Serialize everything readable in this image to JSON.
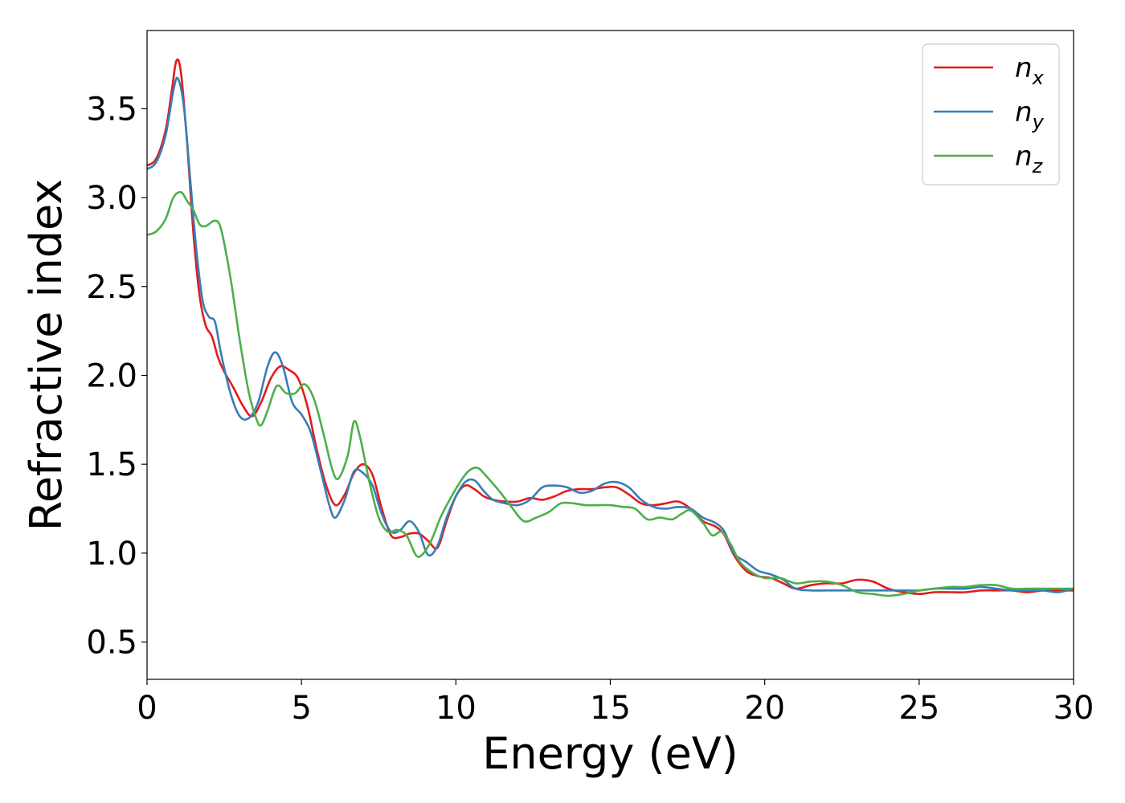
{
  "chart_data": {
    "type": "line",
    "xlabel": "Energy (eV)",
    "ylabel": "Refractive index",
    "xlim": [
      0,
      30
    ],
    "ylim": [
      0.29,
      3.94
    ],
    "xticks": [
      0,
      5,
      10,
      15,
      20,
      25,
      30
    ],
    "yticks": [
      0.5,
      1.0,
      1.5,
      2.0,
      2.5,
      3.0,
      3.5
    ],
    "grid": false,
    "legend_position": "top-right",
    "series": [
      {
        "name": "n_x",
        "label_base": "n",
        "label_sub": "x",
        "color": "#e41a1c",
        "x": [
          0,
          0.3,
          0.6,
          0.8,
          0.95,
          1.1,
          1.3,
          1.5,
          1.7,
          1.9,
          2.1,
          2.3,
          2.5,
          2.8,
          3.1,
          3.4,
          3.7,
          4.0,
          4.3,
          4.6,
          4.9,
          5.2,
          5.5,
          5.8,
          6.1,
          6.4,
          6.7,
          7.0,
          7.3,
          7.6,
          7.9,
          8.2,
          8.5,
          8.8,
          9.1,
          9.4,
          9.7,
          10.0,
          10.3,
          10.6,
          10.9,
          11.2,
          11.6,
          12.0,
          12.4,
          12.8,
          13.2,
          13.6,
          14.0,
          14.4,
          14.8,
          15.2,
          15.6,
          16.0,
          16.4,
          16.8,
          17.2,
          17.6,
          18.0,
          18.4,
          18.7,
          19.0,
          19.4,
          19.8,
          20.2,
          20.6,
          21.0,
          21.5,
          22.0,
          22.5,
          23.0,
          23.5,
          24.0,
          24.5,
          25.0,
          25.5,
          26.0,
          26.5,
          27.0,
          27.5,
          28.0,
          28.5,
          29.0,
          29.5,
          30.0
        ],
        "values": [
          3.18,
          3.22,
          3.38,
          3.6,
          3.77,
          3.7,
          3.3,
          2.8,
          2.45,
          2.28,
          2.22,
          2.1,
          2.02,
          1.93,
          1.83,
          1.77,
          1.85,
          1.98,
          2.05,
          2.03,
          1.98,
          1.82,
          1.58,
          1.38,
          1.27,
          1.33,
          1.45,
          1.5,
          1.44,
          1.25,
          1.1,
          1.09,
          1.11,
          1.11,
          1.07,
          1.03,
          1.18,
          1.32,
          1.38,
          1.36,
          1.32,
          1.3,
          1.29,
          1.29,
          1.31,
          1.3,
          1.32,
          1.35,
          1.36,
          1.36,
          1.37,
          1.37,
          1.33,
          1.28,
          1.27,
          1.28,
          1.29,
          1.25,
          1.18,
          1.15,
          1.1,
          0.99,
          0.9,
          0.87,
          0.86,
          0.83,
          0.8,
          0.82,
          0.83,
          0.83,
          0.85,
          0.84,
          0.8,
          0.78,
          0.77,
          0.78,
          0.78,
          0.78,
          0.79,
          0.79,
          0.79,
          0.78,
          0.79,
          0.79,
          0.79
        ]
      },
      {
        "name": "n_y",
        "label_base": "n",
        "label_sub": "y",
        "color": "#377eb8",
        "x": [
          0,
          0.3,
          0.6,
          0.85,
          1.0,
          1.2,
          1.4,
          1.6,
          1.8,
          2.0,
          2.2,
          2.4,
          2.7,
          3.0,
          3.3,
          3.6,
          3.9,
          4.15,
          4.4,
          4.7,
          5.0,
          5.3,
          5.6,
          5.9,
          6.1,
          6.4,
          6.7,
          7.0,
          7.3,
          7.6,
          7.9,
          8.2,
          8.5,
          8.8,
          9.1,
          9.4,
          9.7,
          10.0,
          10.3,
          10.6,
          10.9,
          11.2,
          11.6,
          12.0,
          12.4,
          12.8,
          13.2,
          13.6,
          14.0,
          14.4,
          14.8,
          15.2,
          15.6,
          16.0,
          16.4,
          16.8,
          17.2,
          17.6,
          18.0,
          18.4,
          18.7,
          19.0,
          19.4,
          19.8,
          20.2,
          20.6,
          21.0,
          21.5,
          22.0,
          22.5,
          23.0,
          23.5,
          24.0,
          24.5,
          25.0,
          25.5,
          26.0,
          26.5,
          27.0,
          27.5,
          28.0,
          28.5,
          29.0,
          29.5,
          30.0
        ],
        "values": [
          3.16,
          3.2,
          3.35,
          3.6,
          3.67,
          3.5,
          3.1,
          2.7,
          2.42,
          2.33,
          2.3,
          2.12,
          1.9,
          1.77,
          1.76,
          1.85,
          2.05,
          2.13,
          2.05,
          1.85,
          1.78,
          1.68,
          1.48,
          1.27,
          1.2,
          1.3,
          1.46,
          1.45,
          1.38,
          1.22,
          1.12,
          1.13,
          1.18,
          1.12,
          0.99,
          1.04,
          1.2,
          1.32,
          1.4,
          1.41,
          1.35,
          1.3,
          1.28,
          1.27,
          1.3,
          1.37,
          1.38,
          1.37,
          1.34,
          1.35,
          1.39,
          1.4,
          1.37,
          1.3,
          1.26,
          1.25,
          1.26,
          1.25,
          1.2,
          1.17,
          1.12,
          1.0,
          0.95,
          0.9,
          0.88,
          0.85,
          0.8,
          0.79,
          0.79,
          0.79,
          0.79,
          0.79,
          0.79,
          0.79,
          0.79,
          0.8,
          0.8,
          0.8,
          0.81,
          0.8,
          0.79,
          0.79,
          0.79,
          0.78,
          0.8
        ]
      },
      {
        "name": "n_z",
        "label_base": "n",
        "label_sub": "z",
        "color": "#4daf4a",
        "x": [
          0,
          0.3,
          0.6,
          0.85,
          1.1,
          1.3,
          1.5,
          1.7,
          1.9,
          2.2,
          2.4,
          2.7,
          3.0,
          3.3,
          3.55,
          3.7,
          3.9,
          4.2,
          4.5,
          4.8,
          5.1,
          5.4,
          5.7,
          6.0,
          6.2,
          6.5,
          6.7,
          6.9,
          7.2,
          7.5,
          7.8,
          8.1,
          8.4,
          8.7,
          8.9,
          9.2,
          9.5,
          9.8,
          10.1,
          10.4,
          10.7,
          11.0,
          11.4,
          11.8,
          12.2,
          12.6,
          13.0,
          13.4,
          13.8,
          14.2,
          14.6,
          15.0,
          15.4,
          15.8,
          16.2,
          16.6,
          17.0,
          17.3,
          17.6,
          18.0,
          18.3,
          18.6,
          18.9,
          19.2,
          19.6,
          20.0,
          20.5,
          21.0,
          21.5,
          22.0,
          22.5,
          23.0,
          23.5,
          24.0,
          24.5,
          25.0,
          25.5,
          26.0,
          26.5,
          27.0,
          27.5,
          28.0,
          28.5,
          29.0,
          29.5,
          30.0
        ],
        "values": [
          2.79,
          2.81,
          2.88,
          3.0,
          3.03,
          2.98,
          2.93,
          2.85,
          2.84,
          2.87,
          2.82,
          2.55,
          2.2,
          1.9,
          1.75,
          1.72,
          1.8,
          1.94,
          1.9,
          1.9,
          1.95,
          1.87,
          1.68,
          1.47,
          1.42,
          1.55,
          1.74,
          1.65,
          1.4,
          1.2,
          1.12,
          1.13,
          1.1,
          0.99,
          0.99,
          1.07,
          1.2,
          1.3,
          1.39,
          1.46,
          1.48,
          1.43,
          1.35,
          1.26,
          1.18,
          1.2,
          1.23,
          1.28,
          1.28,
          1.27,
          1.27,
          1.27,
          1.26,
          1.25,
          1.19,
          1.2,
          1.19,
          1.22,
          1.24,
          1.17,
          1.1,
          1.12,
          1.05,
          0.95,
          0.89,
          0.86,
          0.86,
          0.83,
          0.84,
          0.84,
          0.82,
          0.78,
          0.77,
          0.76,
          0.77,
          0.79,
          0.8,
          0.81,
          0.81,
          0.82,
          0.82,
          0.8,
          0.8,
          0.8,
          0.8,
          0.8
        ]
      }
    ]
  }
}
